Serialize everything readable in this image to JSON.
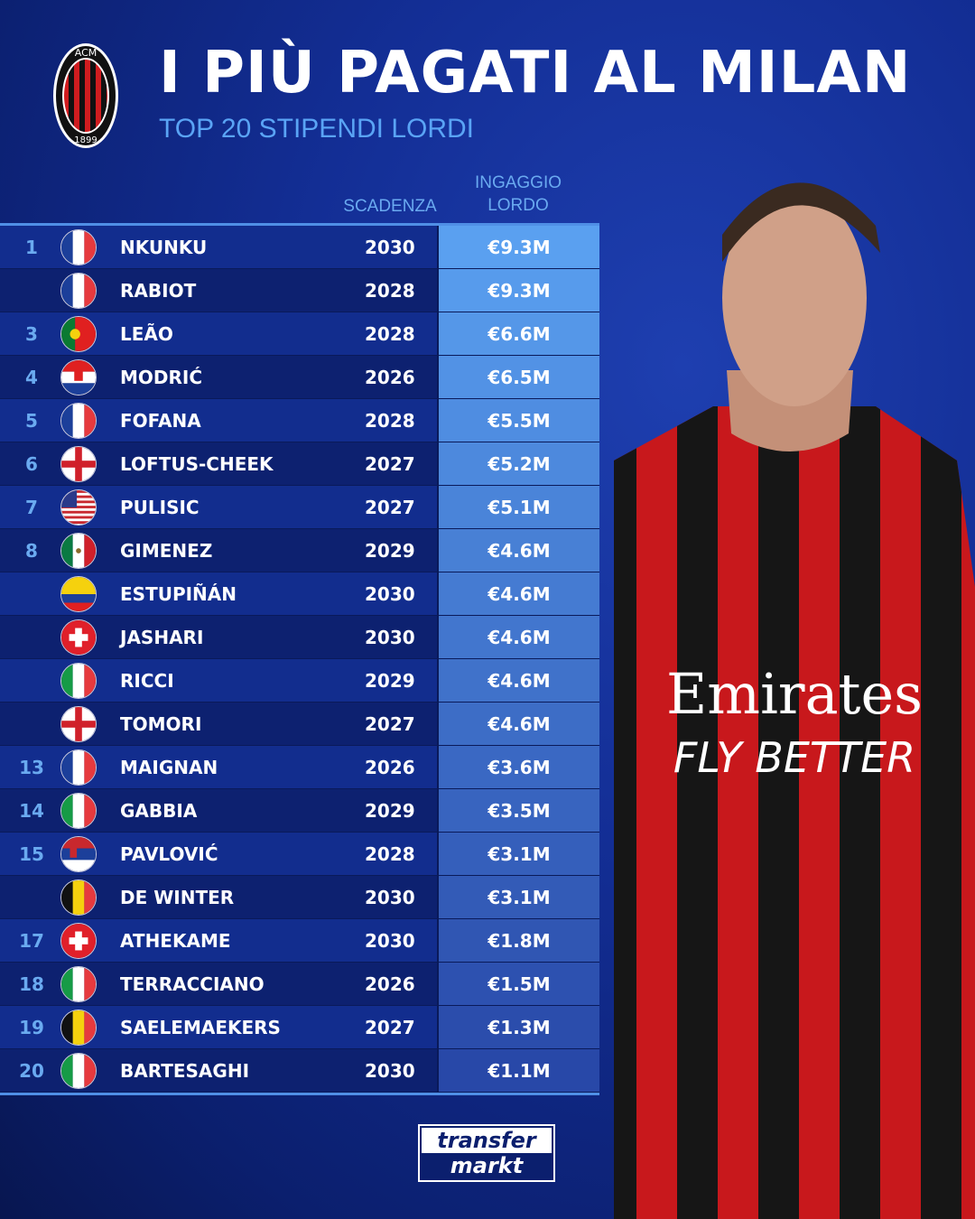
{
  "header": {
    "title": "I PIÙ PAGATI AL MILAN",
    "subtitle": "TOP 20 STIPENDI LORDI",
    "logo_text": "ACM 1899"
  },
  "columns": {
    "expiry": "SCADENZA",
    "salary_line1": "INGAGGIO",
    "salary_line2": "LORDO"
  },
  "colors": {
    "accent": "#5aa4f5",
    "salary_top": "#5aa0f0",
    "salary_bottom": "#2848a8"
  },
  "rows": [
    {
      "rank": "1",
      "flag": "fr",
      "name": "NKUNKU",
      "year": "2030",
      "salary": "€9.3M"
    },
    {
      "rank": "",
      "flag": "fr",
      "name": "RABIOT",
      "year": "2028",
      "salary": "€9.3M"
    },
    {
      "rank": "3",
      "flag": "pt",
      "name": "LEÃO",
      "year": "2028",
      "salary": "€6.6M"
    },
    {
      "rank": "4",
      "flag": "hr",
      "name": "MODRIĆ",
      "year": "2026",
      "salary": "€6.5M"
    },
    {
      "rank": "5",
      "flag": "fr",
      "name": "FOFANA",
      "year": "2028",
      "salary": "€5.5M"
    },
    {
      "rank": "6",
      "flag": "en",
      "name": "LOFTUS-CHEEK",
      "year": "2027",
      "salary": "€5.2M"
    },
    {
      "rank": "7",
      "flag": "us",
      "name": "PULISIC",
      "year": "2027",
      "salary": "€5.1M"
    },
    {
      "rank": "8",
      "flag": "mx",
      "name": "GIMENEZ",
      "year": "2029",
      "salary": "€4.6M"
    },
    {
      "rank": "",
      "flag": "ec",
      "name": "ESTUPIÑÁN",
      "year": "2030",
      "salary": "€4.6M"
    },
    {
      "rank": "",
      "flag": "ch",
      "name": "JASHARI",
      "year": "2030",
      "salary": "€4.6M"
    },
    {
      "rank": "",
      "flag": "it",
      "name": "RICCI",
      "year": "2029",
      "salary": "€4.6M"
    },
    {
      "rank": "",
      "flag": "en",
      "name": "TOMORI",
      "year": "2027",
      "salary": "€4.6M"
    },
    {
      "rank": "13",
      "flag": "fr",
      "name": "MAIGNAN",
      "year": "2026",
      "salary": "€3.6M"
    },
    {
      "rank": "14",
      "flag": "it",
      "name": "GABBIA",
      "year": "2029",
      "salary": "€3.5M"
    },
    {
      "rank": "15",
      "flag": "rs",
      "name": "PAVLOVIĆ",
      "year": "2028",
      "salary": "€3.1M"
    },
    {
      "rank": "",
      "flag": "be",
      "name": "DE WINTER",
      "year": "2030",
      "salary": "€3.1M"
    },
    {
      "rank": "17",
      "flag": "ch",
      "name": "ATHEKAME",
      "year": "2030",
      "salary": "€1.8M"
    },
    {
      "rank": "18",
      "flag": "it",
      "name": "TERRACCIANO",
      "year": "2026",
      "salary": "€1.5M"
    },
    {
      "rank": "19",
      "flag": "be",
      "name": "SAELEMAEKERS",
      "year": "2027",
      "salary": "€1.3M"
    },
    {
      "rank": "20",
      "flag": "it",
      "name": "BARTESAGHI",
      "year": "2030",
      "salary": "€1.1M"
    }
  ],
  "footer": {
    "brand_line1": "transfer",
    "brand_line2": "markt"
  },
  "player_shirt": {
    "sponsor_line1": "Emirates",
    "sponsor_line2": "FLY BETTER"
  }
}
